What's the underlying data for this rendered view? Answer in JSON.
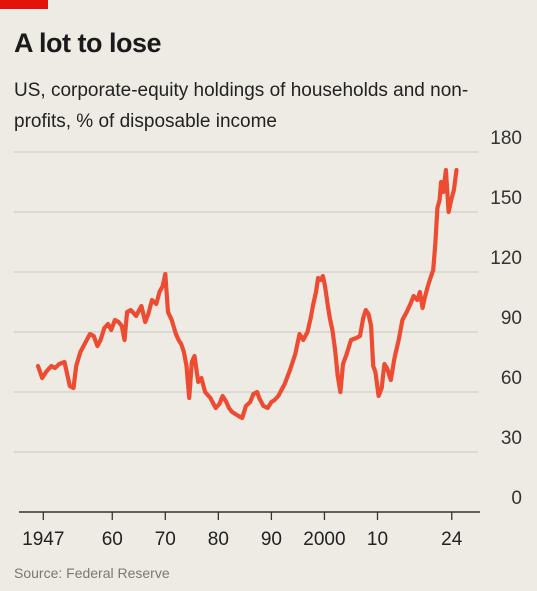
{
  "chart_data": {
    "type": "line",
    "title": "A lot to lose",
    "subtitle": "US, corporate-equity holdings of households and non-profits, % of disposable income",
    "source": "Source: Federal Reserve",
    "accent_color": "#e3120b",
    "line_color": "#ee4c32",
    "grid": true,
    "ylim": [
      0,
      180
    ],
    "xlim": [
      1945.5,
      2026
    ],
    "y_ticks": [
      0,
      30,
      60,
      90,
      120,
      150,
      180
    ],
    "x_ticks": [
      {
        "value": 1947,
        "label": "1947"
      },
      {
        "value": 1960,
        "label": "60"
      },
      {
        "value": 1970,
        "label": "70"
      },
      {
        "value": 1980,
        "label": "80"
      },
      {
        "value": 1990,
        "label": "90"
      },
      {
        "value": 2000,
        "label": "2000"
      },
      {
        "value": 2010,
        "label": "10"
      },
      {
        "value": 2024,
        "label": "24"
      }
    ],
    "series": [
      {
        "x": [
          1946.0,
          1946.8,
          1947.5,
          1948.5,
          1949.2,
          1950.0,
          1951.0,
          1952.0,
          1952.7,
          1953.2,
          1954.0,
          1955.0,
          1955.8,
          1956.5,
          1957.2,
          1957.8,
          1958.5,
          1959.2,
          1959.8,
          1960.5,
          1961.2,
          1961.8,
          1962.3,
          1962.8,
          1963.5,
          1964.5,
          1965.5,
          1966.2,
          1966.8,
          1967.5,
          1968.3,
          1968.9,
          1969.5,
          1970.0,
          1970.5,
          1971.2,
          1972.0,
          1972.5,
          1973.0,
          1973.5,
          1974.0,
          1974.5,
          1975.0,
          1975.5,
          1976.2,
          1976.8,
          1977.5,
          1978.5,
          1979.5,
          1980.2,
          1980.8,
          1981.5,
          1982.0,
          1982.6,
          1983.2,
          1983.8,
          1984.5,
          1985.2,
          1986.0,
          1986.6,
          1987.3,
          1987.7,
          1988.5,
          1989.3,
          1990.0,
          1990.6,
          1991.3,
          1992.5,
          1993.5,
          1994.5,
          1995.3,
          1996.0,
          1996.8,
          1997.4,
          1997.9,
          1998.4,
          1998.8,
          1999.3,
          1999.7,
          2000.1,
          2000.6,
          2001.0,
          2001.5,
          2002.0,
          2002.5,
          2003.0,
          2003.5,
          2004.2,
          2005.0,
          2006.0,
          2006.7,
          2007.3,
          2007.8,
          2008.3,
          2008.8,
          2009.2,
          2009.6,
          2010.2,
          2010.8,
          2011.3,
          2011.8,
          2012.5,
          2013.2,
          2014.0,
          2014.7,
          2015.5,
          2016.2,
          2016.8,
          2017.5,
          2018.0,
          2018.5,
          2018.9,
          2019.5,
          2020.1,
          2020.5,
          2020.9,
          2021.3,
          2021.7,
          2022.0,
          2022.4,
          2022.9,
          2023.4,
          2023.9,
          2024.4,
          2024.9
        ],
        "values": [
          73,
          67,
          70,
          73,
          72,
          74,
          75,
          63,
          62,
          73,
          80,
          85,
          89,
          88,
          83,
          86,
          92,
          94,
          91,
          96,
          95,
          93,
          86,
          100,
          101,
          98,
          103,
          95,
          99,
          106,
          104,
          110,
          113,
          119,
          100,
          96,
          89,
          86,
          84,
          80,
          73,
          57,
          75,
          78,
          65,
          67,
          60,
          57,
          52,
          54,
          58,
          55,
          52,
          50,
          49,
          48,
          47,
          53,
          55,
          59,
          60,
          57,
          53,
          52,
          55,
          56,
          58,
          64,
          71,
          79,
          89,
          86,
          90,
          97,
          104,
          110,
          117,
          116,
          118,
          113,
          104,
          97,
          91,
          81,
          68,
          60,
          74,
          79,
          86,
          87,
          88,
          97,
          101,
          99,
          93,
          73,
          70,
          58,
          62,
          74,
          72,
          66,
          77,
          86,
          96,
          100,
          104,
          108,
          106,
          110,
          102,
          107,
          113,
          118,
          121,
          134,
          152,
          156,
          165,
          160,
          171,
          150,
          156,
          161,
          171
        ]
      }
    ]
  }
}
